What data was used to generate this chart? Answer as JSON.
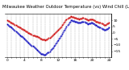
{
  "title": "Milwaukee Weather Outdoor Temperature (vs) Wind Chill (Last 24 Hours)",
  "temp": [
    10,
    8,
    6,
    4,
    2,
    0,
    -2,
    -3,
    -5,
    -6,
    -4,
    -1,
    2,
    6,
    11,
    13,
    12,
    11,
    12,
    10,
    11,
    9,
    8,
    6,
    8
  ],
  "wind_chill": [
    7,
    4,
    1,
    -2,
    -5,
    -8,
    -11,
    -14,
    -17,
    -18,
    -15,
    -11,
    -6,
    -1,
    5,
    10,
    9,
    8,
    9,
    7,
    8,
    6,
    4,
    2,
    4
  ],
  "temp_color": "#cc0000",
  "wind_chill_color": "#0000bb",
  "background_color": "#ffffff",
  "ylim": [
    -20,
    15
  ],
  "yticks": [
    -15,
    -10,
    -5,
    0,
    5,
    10
  ],
  "grid_color": "#888888",
  "title_fontsize": 3.8,
  "tick_fontsize": 3.2,
  "marker_size": 1.2,
  "line_width": 0.0,
  "n_points": 25
}
